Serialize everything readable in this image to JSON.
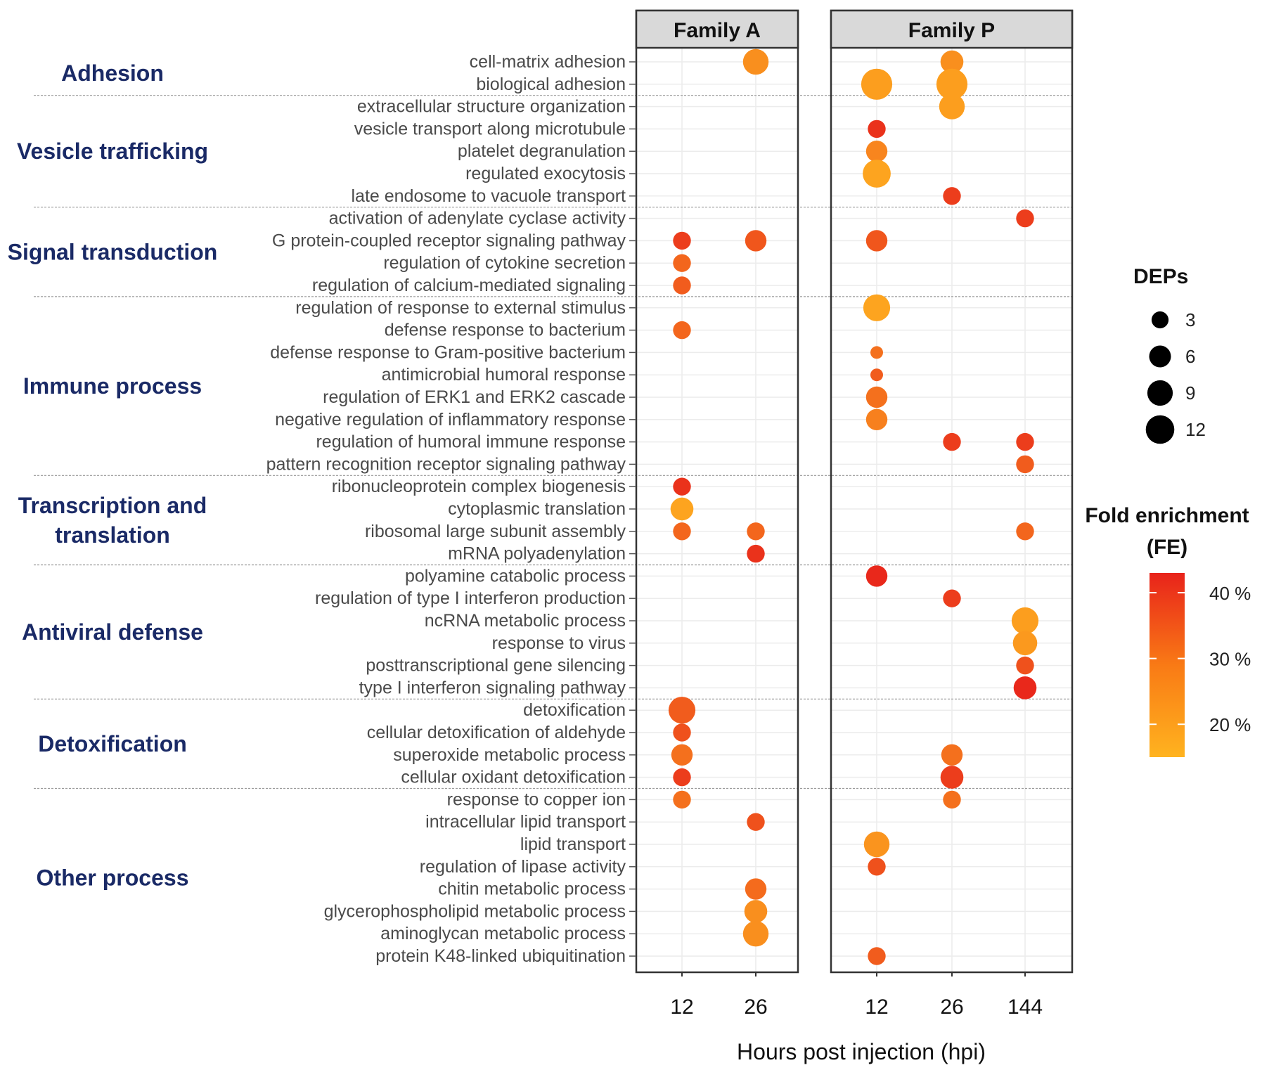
{
  "chart_data": {
    "type": "scatter",
    "xlabel": "Hours post injection (hpi)",
    "panels": [
      {
        "name": "Family A",
        "x_ticks": [
          "12",
          "26"
        ]
      },
      {
        "name": "Family P",
        "x_ticks": [
          "12",
          "26",
          "144"
        ]
      }
    ],
    "categories": [
      {
        "name": "Adhesion",
        "lines": [
          "Adhesion"
        ],
        "terms": [
          "cell-matrix adhesion",
          "biological adhesion"
        ]
      },
      {
        "name": "Vesicle trafficking",
        "lines": [
          "Vesicle trafficking"
        ],
        "terms": [
          "extracellular structure organization",
          "vesicle transport along microtubule",
          "platelet degranulation",
          "regulated exocytosis",
          "late endosome to vacuole transport"
        ]
      },
      {
        "name": "Signal transduction",
        "lines": [
          "Signal transduction"
        ],
        "terms": [
          "activation of adenylate cyclase activity",
          "G protein-coupled receptor signaling pathway",
          "regulation of cytokine secretion",
          "regulation of calcium-mediated signaling"
        ]
      },
      {
        "name": "Immune process",
        "lines": [
          "Immune process"
        ],
        "terms": [
          "regulation of response to external stimulus",
          "defense response to bacterium",
          "defense response to Gram-positive bacterium",
          "antimicrobial humoral response",
          "regulation of ERK1 and ERK2 cascade",
          "negative regulation of inflammatory response",
          "regulation of humoral immune response",
          "pattern recognition receptor signaling pathway"
        ]
      },
      {
        "name": "Transcription and translation",
        "lines": [
          "Transcription  and",
          "translation"
        ],
        "terms": [
          "ribonucleoprotein complex biogenesis",
          "cytoplasmic translation",
          "ribosomal large subunit assembly",
          "mRNA polyadenylation"
        ]
      },
      {
        "name": "Antiviral defense",
        "lines": [
          "Antiviral defense"
        ],
        "terms": [
          "polyamine catabolic process",
          "regulation of type I interferon production",
          "ncRNA metabolic process",
          "response to virus",
          "posttranscriptional gene silencing",
          "type I interferon signaling pathway"
        ]
      },
      {
        "name": "Detoxification",
        "lines": [
          "Detoxification"
        ],
        "terms": [
          "detoxification",
          "cellular detoxification of aldehyde",
          "superoxide metabolic process",
          "cellular oxidant detoxification"
        ]
      },
      {
        "name": "Other process",
        "lines": [
          "Other process"
        ],
        "terms": [
          "response to copper ion",
          "intracellular lipid transport",
          "lipid transport",
          "regulation of lipase activity",
          "chitin metabolic process",
          "glycerophospholipid metabolic process",
          "aminoglycan metabolic process",
          "protein K48-linked ubiquitination"
        ]
      }
    ],
    "points": [
      {
        "term": "cell-matrix adhesion",
        "panel": "Family A",
        "hpi": "26",
        "deps": 8,
        "fe": 22
      },
      {
        "term": "cell-matrix adhesion",
        "panel": "Family P",
        "hpi": "26",
        "deps": 6,
        "fe": 22
      },
      {
        "term": "biological adhesion",
        "panel": "Family P",
        "hpi": "12",
        "deps": 13,
        "fe": 19
      },
      {
        "term": "biological adhesion",
        "panel": "Family P",
        "hpi": "26",
        "deps": 13,
        "fe": 19
      },
      {
        "term": "extracellular structure organization",
        "panel": "Family P",
        "hpi": "26",
        "deps": 8,
        "fe": 19
      },
      {
        "term": "vesicle transport along microtubule",
        "panel": "Family P",
        "hpi": "12",
        "deps": 3,
        "fe": 40
      },
      {
        "term": "platelet degranulation",
        "panel": "Family P",
        "hpi": "12",
        "deps": 5,
        "fe": 24
      },
      {
        "term": "regulated exocytosis",
        "panel": "Family P",
        "hpi": "12",
        "deps": 10,
        "fe": 18
      },
      {
        "term": "late endosome to vacuole transport",
        "panel": "Family P",
        "hpi": "26",
        "deps": 3,
        "fe": 38
      },
      {
        "term": "activation of adenylate cyclase activity",
        "panel": "Family P",
        "hpi": "144",
        "deps": 3,
        "fe": 38
      },
      {
        "term": "G protein-coupled receptor signaling pathway",
        "panel": "Family A",
        "hpi": "12",
        "deps": 3,
        "fe": 38
      },
      {
        "term": "G protein-coupled receptor signaling pathway",
        "panel": "Family A",
        "hpi": "26",
        "deps": 5,
        "fe": 33
      },
      {
        "term": "G protein-coupled receptor signaling pathway",
        "panel": "Family P",
        "hpi": "12",
        "deps": 5,
        "fe": 33
      },
      {
        "term": "regulation of cytokine secretion",
        "panel": "Family A",
        "hpi": "12",
        "deps": 3,
        "fe": 30
      },
      {
        "term": "regulation of calcium-mediated signaling",
        "panel": "Family A",
        "hpi": "12",
        "deps": 3,
        "fe": 32
      },
      {
        "term": "regulation of response to external stimulus",
        "panel": "Family P",
        "hpi": "12",
        "deps": 9,
        "fe": 18
      },
      {
        "term": "defense response to bacterium",
        "panel": "Family A",
        "hpi": "12",
        "deps": 3,
        "fe": 30
      },
      {
        "term": "defense response to Gram-positive bacterium",
        "panel": "Family P",
        "hpi": "12",
        "deps": 1,
        "fe": 28
      },
      {
        "term": "antimicrobial humoral response",
        "panel": "Family P",
        "hpi": "12",
        "deps": 1,
        "fe": 32
      },
      {
        "term": "regulation of ERK1 and ERK2 cascade",
        "panel": "Family P",
        "hpi": "12",
        "deps": 5,
        "fe": 28
      },
      {
        "term": "negative regulation of inflammatory response",
        "panel": "Family P",
        "hpi": "12",
        "deps": 5,
        "fe": 25
      },
      {
        "term": "regulation of humoral immune response",
        "panel": "Family P",
        "hpi": "26",
        "deps": 3,
        "fe": 38
      },
      {
        "term": "regulation of humoral immune response",
        "panel": "Family P",
        "hpi": "144",
        "deps": 3,
        "fe": 38
      },
      {
        "term": "pattern recognition receptor signaling pathway",
        "panel": "Family P",
        "hpi": "144",
        "deps": 3,
        "fe": 32
      },
      {
        "term": "ribonucleoprotein complex biogenesis",
        "panel": "Family A",
        "hpi": "12",
        "deps": 3,
        "fe": 40
      },
      {
        "term": "cytoplasmic translation",
        "panel": "Family A",
        "hpi": "12",
        "deps": 6,
        "fe": 18
      },
      {
        "term": "ribosomal large subunit assembly",
        "panel": "Family A",
        "hpi": "12",
        "deps": 3,
        "fe": 30
      },
      {
        "term": "ribosomal large subunit assembly",
        "panel": "Family A",
        "hpi": "26",
        "deps": 3,
        "fe": 30
      },
      {
        "term": "ribosomal large subunit assembly",
        "panel": "Family P",
        "hpi": "144",
        "deps": 3,
        "fe": 30
      },
      {
        "term": "mRNA polyadenylation",
        "panel": "Family A",
        "hpi": "26",
        "deps": 3,
        "fe": 40
      },
      {
        "term": "polyamine catabolic process",
        "panel": "Family P",
        "hpi": "12",
        "deps": 5,
        "fe": 42
      },
      {
        "term": "regulation of type I interferon production",
        "panel": "Family P",
        "hpi": "26",
        "deps": 3,
        "fe": 38
      },
      {
        "term": "ncRNA metabolic process",
        "panel": "Family P",
        "hpi": "144",
        "deps": 9,
        "fe": 19
      },
      {
        "term": "response to virus",
        "panel": "Family P",
        "hpi": "144",
        "deps": 7,
        "fe": 20
      },
      {
        "term": "posttranscriptional gene silencing",
        "panel": "Family P",
        "hpi": "144",
        "deps": 3,
        "fe": 34
      },
      {
        "term": "type I interferon signaling pathway",
        "panel": "Family P",
        "hpi": "144",
        "deps": 6,
        "fe": 42
      },
      {
        "term": "detoxification",
        "panel": "Family A",
        "hpi": "12",
        "deps": 9,
        "fe": 32
      },
      {
        "term": "cellular detoxification of aldehyde",
        "panel": "Family A",
        "hpi": "12",
        "deps": 3,
        "fe": 34
      },
      {
        "term": "superoxide metabolic process",
        "panel": "Family A",
        "hpi": "12",
        "deps": 5,
        "fe": 28
      },
      {
        "term": "superoxide metabolic process",
        "panel": "Family P",
        "hpi": "26",
        "deps": 5,
        "fe": 28
      },
      {
        "term": "cellular oxidant detoxification",
        "panel": "Family A",
        "hpi": "12",
        "deps": 3,
        "fe": 38
      },
      {
        "term": "cellular oxidant detoxification",
        "panel": "Family P",
        "hpi": "26",
        "deps": 6,
        "fe": 38
      },
      {
        "term": "response to copper ion",
        "panel": "Family A",
        "hpi": "12",
        "deps": 3,
        "fe": 28
      },
      {
        "term": "response to copper ion",
        "panel": "Family P",
        "hpi": "26",
        "deps": 3,
        "fe": 28
      },
      {
        "term": "intracellular lipid transport",
        "panel": "Family A",
        "hpi": "26",
        "deps": 3,
        "fe": 34
      },
      {
        "term": "lipid transport",
        "panel": "Family P",
        "hpi": "12",
        "deps": 8,
        "fe": 21
      },
      {
        "term": "regulation of lipase activity",
        "panel": "Family P",
        "hpi": "12",
        "deps": 3,
        "fe": 34
      },
      {
        "term": "chitin metabolic process",
        "panel": "Family A",
        "hpi": "26",
        "deps": 5,
        "fe": 29
      },
      {
        "term": "glycerophospholipid metabolic process",
        "panel": "Family A",
        "hpi": "26",
        "deps": 6,
        "fe": 22
      },
      {
        "term": "aminoglycan metabolic process",
        "panel": "Family A",
        "hpi": "26",
        "deps": 8,
        "fe": 22
      },
      {
        "term": "protein K48-linked ubiquitination",
        "panel": "Family P",
        "hpi": "12",
        "deps": 3,
        "fe": 32
      }
    ],
    "size_legend": {
      "title": "DEPs",
      "values": [
        3,
        6,
        9,
        12
      ]
    },
    "color_legend": {
      "title_lines": [
        "Fold enrichment",
        "(FE)"
      ],
      "labels": [
        "40 %",
        "30 %",
        "20 %"
      ],
      "label_values": [
        40,
        30,
        20
      ],
      "range": [
        15,
        43
      ],
      "low_color": "#ffb31f",
      "high_color": "#e8231b"
    }
  }
}
